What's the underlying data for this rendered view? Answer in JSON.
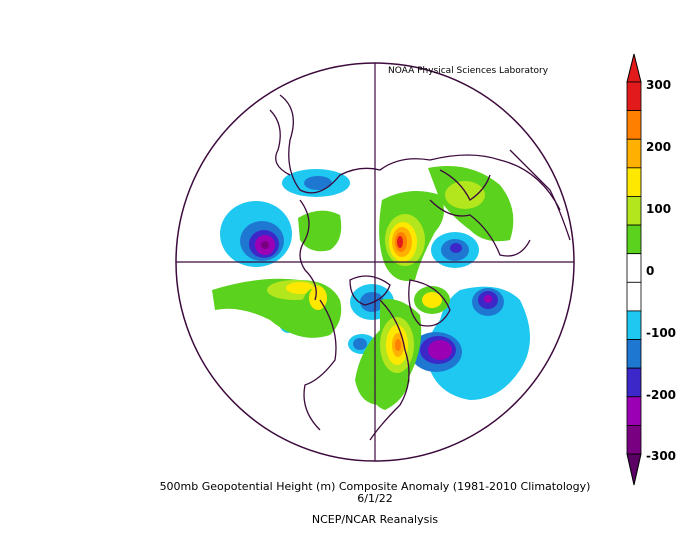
{
  "credit": "NOAA Physical Sciences Laboratory",
  "title_line1": "500mb Geopotential Height (m) Composite Anomaly (1981-2010 Climatology)",
  "title_line2": "6/1/22",
  "title_line3": "NCEP/NCAR Reanalysis",
  "colorbar": {
    "labels": [
      "300",
      "200",
      "100",
      "0",
      "-100",
      "-200",
      "-300"
    ],
    "colors": [
      "#e31a1c",
      "#ff7f00",
      "#ffb000",
      "#ffe800",
      "#b4e61e",
      "#5ad21e",
      "#ffffff",
      "#ffffff",
      "#1ec8f0",
      "#1e78d2",
      "#3c28c8",
      "#9b00b4",
      "#7a0082"
    ],
    "top_arrow_color": "#e31a1c",
    "bottom_arrow_color": "#5a0064"
  },
  "colors": {
    "coast": "#3c0a3c",
    "grid": "#3c0a3c"
  }
}
